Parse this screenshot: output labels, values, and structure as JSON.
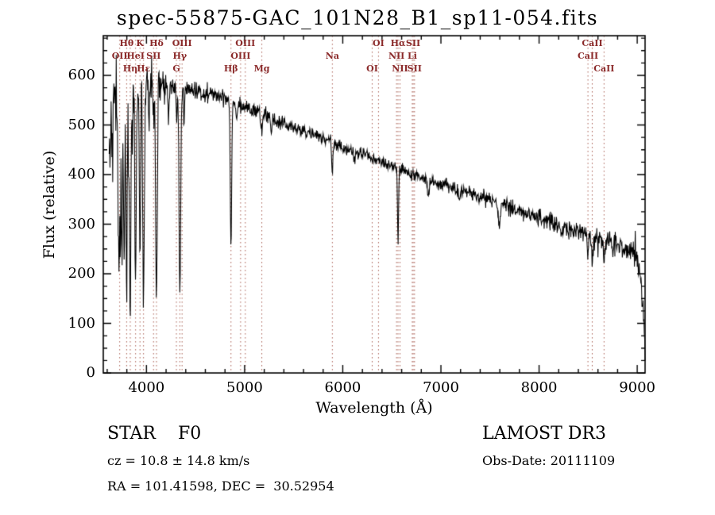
{
  "title": "spec-55875-GAC_101N28_B1_sp11-054.fits",
  "footer": {
    "class_label": "STAR    F0",
    "survey": "LAMOST DR3",
    "cz": "cz = 10.8 ± 14.8 km/s",
    "obs_date": "Obs-Date: 20111109",
    "radec": "RA = 101.41598, DEC =  30.52954"
  },
  "chart_data": {
    "type": "line",
    "title": "spec-55875-GAC_101N28_B1_sp11-054.fits",
    "xlabel": "Wavelength (Å)",
    "ylabel": "Flux (relative)",
    "xlim": [
      3560,
      9080
    ],
    "ylim": [
      0,
      680
    ],
    "xticks": [
      4000,
      5000,
      6000,
      7000,
      8000,
      9000
    ],
    "yticks": [
      0,
      100,
      200,
      300,
      400,
      500,
      600
    ],
    "grid": false,
    "line_color": "#000000",
    "marker_line_color": "#a85c50",
    "marker_label_color": "#8b2a2a",
    "spectral_lines": [
      {
        "wavelength": 3727,
        "label": "OII",
        "row": 1
      },
      {
        "wavelength": 3798,
        "label": "Hθ",
        "row": 0
      },
      {
        "wavelength": 3835,
        "label": "Hη",
        "row": 2
      },
      {
        "wavelength": 3889,
        "label": "HeI",
        "row": 1
      },
      {
        "wavelength": 3934,
        "label": "K",
        "row": 0
      },
      {
        "wavelength": 3970,
        "label": "Hε",
        "row": 2
      },
      {
        "wavelength": 4072,
        "label": "SII",
        "row": 1
      },
      {
        "wavelength": 4102,
        "label": "Hδ",
        "row": 0
      },
      {
        "wavelength": 4305,
        "label": "G",
        "row": 2
      },
      {
        "wavelength": 4340,
        "label": "Hγ",
        "row": 1
      },
      {
        "wavelength": 4363,
        "label": "OIII",
        "row": 0
      },
      {
        "wavelength": 4861,
        "label": "Hβ",
        "row": 2
      },
      {
        "wavelength": 4959,
        "label": "OIII",
        "row": 1
      },
      {
        "wavelength": 5007,
        "label": "OIII",
        "row": 0
      },
      {
        "wavelength": 5175,
        "label": "Mg",
        "row": 2
      },
      {
        "wavelength": 5894,
        "label": "Na",
        "row": 1
      },
      {
        "wavelength": 6300,
        "label": "OI",
        "row": 2
      },
      {
        "wavelength": 6364,
        "label": "OI",
        "row": 0
      },
      {
        "wavelength": 6548,
        "label": "NII",
        "row": 1
      },
      {
        "wavelength": 6563,
        "label": "Hα",
        "row": 0
      },
      {
        "wavelength": 6583,
        "label": "NII",
        "row": 2
      },
      {
        "wavelength": 6708,
        "label": "Li",
        "row": 1
      },
      {
        "wavelength": 6717,
        "label": "SII",
        "row": 0
      },
      {
        "wavelength": 6731,
        "label": "SII",
        "row": 2
      },
      {
        "wavelength": 8498,
        "label": "CaII",
        "row": 1
      },
      {
        "wavelength": 8542,
        "label": "CaII",
        "row": 0
      },
      {
        "wavelength": 8662,
        "label": "CaII",
        "row": 2
      }
    ],
    "spectrum_model": {
      "wl_start": 3620,
      "wl_end": 9080,
      "wl_step": 4,
      "noise_seed": 42,
      "continuum": [
        [
          3620,
          480
        ],
        [
          3700,
          555
        ],
        [
          3760,
          570
        ],
        [
          3830,
          575
        ],
        [
          3900,
          580
        ],
        [
          3980,
          585
        ],
        [
          4060,
          585
        ],
        [
          4150,
          578
        ],
        [
          4250,
          572
        ],
        [
          4350,
          568
        ],
        [
          4450,
          570
        ],
        [
          4550,
          568
        ],
        [
          4650,
          562
        ],
        [
          4750,
          558
        ],
        [
          4850,
          552
        ],
        [
          4950,
          542
        ],
        [
          5050,
          532
        ],
        [
          5150,
          524
        ],
        [
          5250,
          514
        ],
        [
          5350,
          506
        ],
        [
          5450,
          498
        ],
        [
          5550,
          491
        ],
        [
          5650,
          484
        ],
        [
          5750,
          477
        ],
        [
          5850,
          469
        ],
        [
          5950,
          459
        ],
        [
          6050,
          451
        ],
        [
          6150,
          444
        ],
        [
          6250,
          437
        ],
        [
          6350,
          428
        ],
        [
          6450,
          420
        ],
        [
          6550,
          412
        ],
        [
          6650,
          403
        ],
        [
          6750,
          396
        ],
        [
          6850,
          390
        ],
        [
          6950,
          384
        ],
        [
          7050,
          378
        ],
        [
          7150,
          372
        ],
        [
          7250,
          366
        ],
        [
          7350,
          359
        ],
        [
          7450,
          352
        ],
        [
          7550,
          345
        ],
        [
          7650,
          338
        ],
        [
          7750,
          331
        ],
        [
          7850,
          323
        ],
        [
          7950,
          316
        ],
        [
          8050,
          309
        ],
        [
          8150,
          302
        ],
        [
          8250,
          295
        ],
        [
          8350,
          288
        ],
        [
          8450,
          281
        ],
        [
          8550,
          273
        ],
        [
          8650,
          266
        ],
        [
          8750,
          259
        ],
        [
          8850,
          252
        ],
        [
          8950,
          243
        ],
        [
          9000,
          235
        ],
        [
          9030,
          200
        ],
        [
          9060,
          120
        ],
        [
          9080,
          40
        ]
      ],
      "absorption_lines": [
        [
          3712,
          280,
          4
        ],
        [
          3722,
          300,
          4
        ],
        [
          3734,
          330,
          5
        ],
        [
          3750,
          360,
          5
        ],
        [
          3771,
          380,
          6
        ],
        [
          3798,
          410,
          6
        ],
        [
          3820,
          150,
          4
        ],
        [
          3835,
          430,
          7
        ],
        [
          3856,
          120,
          4
        ],
        [
          3889,
          440,
          7
        ],
        [
          3934,
          330,
          6
        ],
        [
          3970,
          450,
          8
        ],
        [
          4026,
          90,
          5
        ],
        [
          4072,
          80,
          5
        ],
        [
          4102,
          430,
          8
        ],
        [
          4226,
          70,
          4
        ],
        [
          4310,
          60,
          5
        ],
        [
          4340,
          415,
          8
        ],
        [
          4383,
          70,
          4
        ],
        [
          4861,
          295,
          7
        ],
        [
          4920,
          40,
          5
        ],
        [
          5175,
          45,
          6
        ],
        [
          5270,
          30,
          5
        ],
        [
          5893,
          75,
          5
        ],
        [
          6122,
          25,
          5
        ],
        [
          6563,
          150,
          5
        ],
        [
          6870,
          35,
          8
        ],
        [
          7186,
          25,
          8
        ],
        [
          7594,
          48,
          10
        ],
        [
          8230,
          25,
          7
        ],
        [
          8498,
          40,
          6
        ],
        [
          8542,
          50,
          6
        ],
        [
          8662,
          50,
          6
        ]
      ],
      "noise_sigma": [
        [
          3620,
          40
        ],
        [
          3720,
          38
        ],
        [
          3800,
          34
        ],
        [
          3900,
          30
        ],
        [
          4000,
          26
        ],
        [
          4100,
          20
        ],
        [
          4200,
          15
        ],
        [
          4350,
          11
        ],
        [
          4500,
          9
        ],
        [
          4800,
          8
        ],
        [
          5200,
          7
        ],
        [
          5800,
          6.5
        ],
        [
          6300,
          6
        ],
        [
          6800,
          6
        ],
        [
          7300,
          6.5
        ],
        [
          7800,
          8
        ],
        [
          8300,
          10
        ],
        [
          8700,
          12
        ],
        [
          9080,
          15
        ]
      ]
    }
  }
}
